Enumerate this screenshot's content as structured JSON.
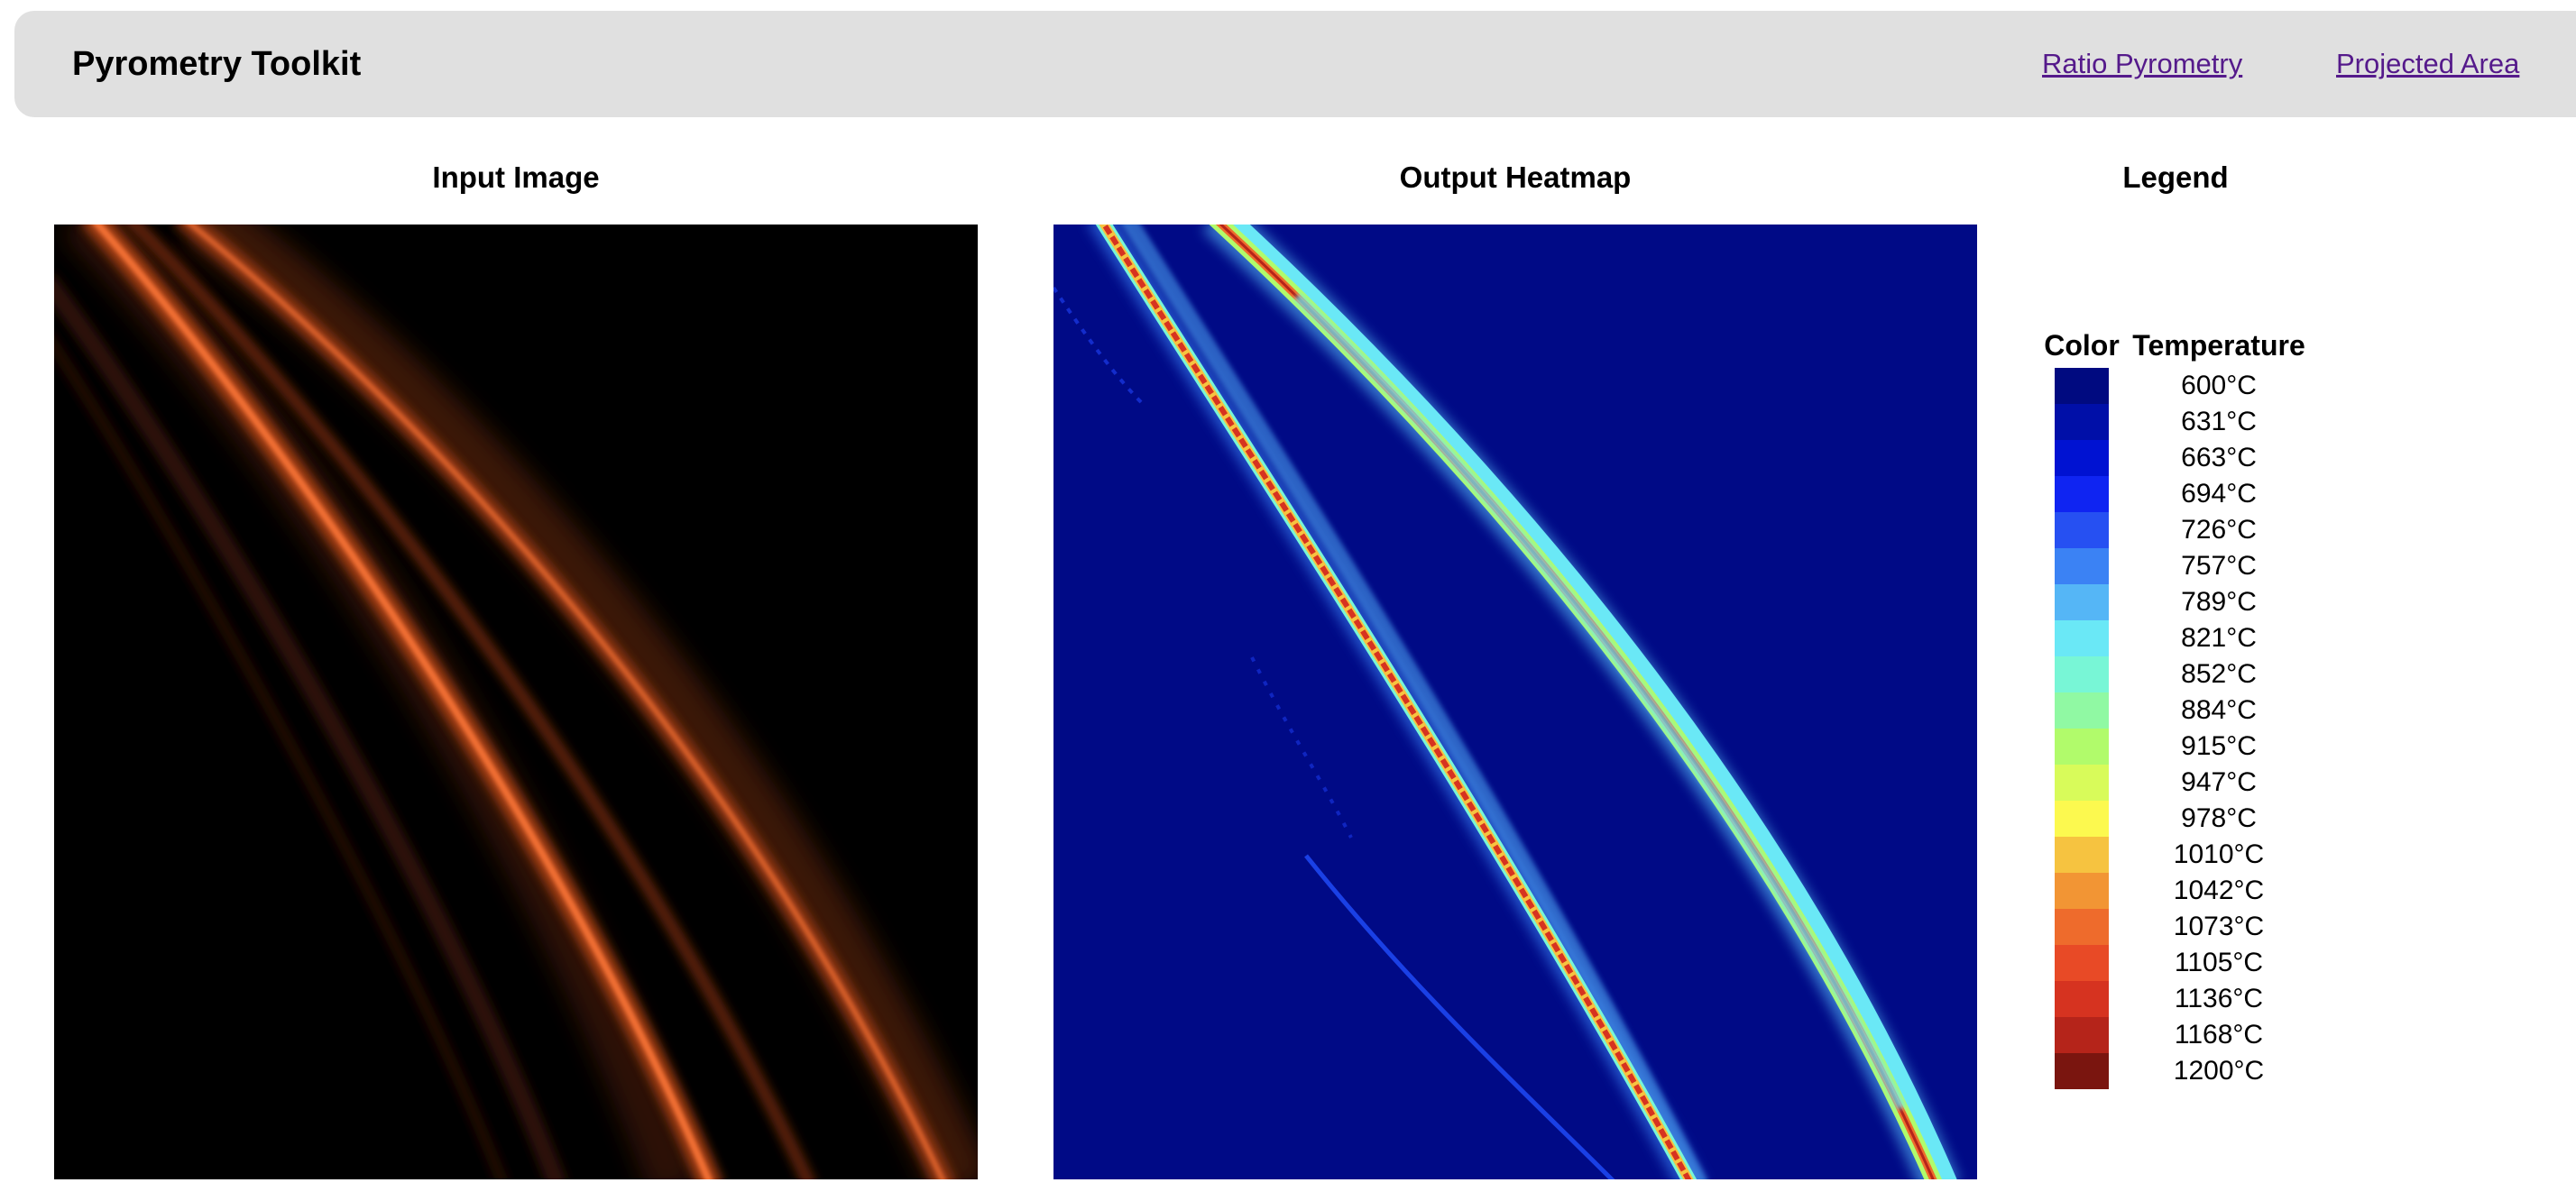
{
  "app": {
    "title": "Pyrometry Toolkit"
  },
  "nav": {
    "links": [
      {
        "label": "Ratio Pyrometry"
      },
      {
        "label": "Projected Area"
      }
    ]
  },
  "panels": {
    "input_title": "Input Image",
    "output_title": "Output Heatmap",
    "legend_title": "Legend"
  },
  "legend": {
    "headers": {
      "color": "Color",
      "temperature": "Temperature"
    },
    "entries": [
      {
        "temp": "600°C",
        "color": "#000a80"
      },
      {
        "temp": "631°C",
        "color": "#000fa8"
      },
      {
        "temp": "663°C",
        "color": "#0012d2"
      },
      {
        "temp": "694°C",
        "color": "#0f24f2"
      },
      {
        "temp": "726°C",
        "color": "#2650f2"
      },
      {
        "temp": "757°C",
        "color": "#3b82f4"
      },
      {
        "temp": "789°C",
        "color": "#55b6f6"
      },
      {
        "temp": "821°C",
        "color": "#6ae8f6"
      },
      {
        "temp": "852°C",
        "color": "#78f6d6"
      },
      {
        "temp": "884°C",
        "color": "#90f9a3"
      },
      {
        "temp": "915°C",
        "color": "#b1fb6b"
      },
      {
        "temp": "947°C",
        "color": "#d8fb5a"
      },
      {
        "temp": "978°C",
        "color": "#fcf94f"
      },
      {
        "temp": "1010°C",
        "color": "#f6c340"
      },
      {
        "temp": "1042°C",
        "color": "#f29534"
      },
      {
        "temp": "1073°C",
        "color": "#ee6b2c"
      },
      {
        "temp": "1105°C",
        "color": "#e84a26"
      },
      {
        "temp": "1136°C",
        "color": "#d63320"
      },
      {
        "temp": "1168°C",
        "color": "#b5241a"
      },
      {
        "temp": "1200°C",
        "color": "#7a150f"
      }
    ]
  }
}
